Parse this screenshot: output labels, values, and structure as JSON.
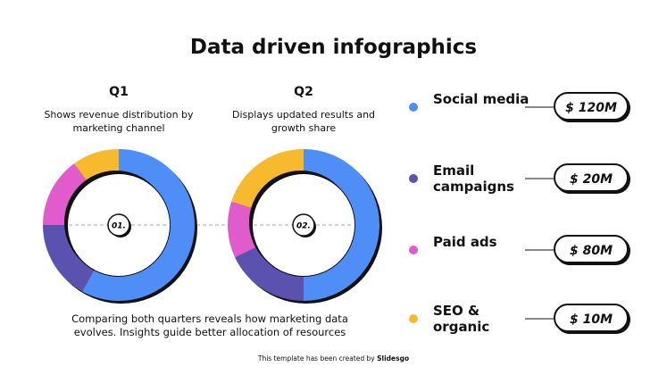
{
  "title": "Data driven infographics",
  "chart_data": [
    {
      "type": "pie",
      "title": "Q1",
      "subtitle": "Shows revenue distribution by marketing channel",
      "center_label": "01.",
      "values": [
        58,
        17,
        15,
        10
      ]
    },
    {
      "type": "pie",
      "title": "Q2",
      "subtitle": "Displays updated results and growth share",
      "center_label": "02.",
      "values": [
        50,
        18,
        12,
        20
      ]
    }
  ],
  "legend": {
    "items": [
      {
        "name": "Social media",
        "color": "#4f8ef7",
        "amount": "$ 120M"
      },
      {
        "name": "Email campaigns",
        "color": "#5a52ae",
        "amount": "$ 20M"
      },
      {
        "name": "Paid ads",
        "color": "#e05ccc",
        "amount": "$ 80M"
      },
      {
        "name": "SEO & organic",
        "color": "#f7b92d",
        "amount": "$ 10M"
      }
    ]
  },
  "summary": "Comparing both quarters reveals how marketing data evolves. Insights guide better allocation of resources",
  "footer": {
    "text": "This template has been created by",
    "brand": "Slidesgo"
  }
}
